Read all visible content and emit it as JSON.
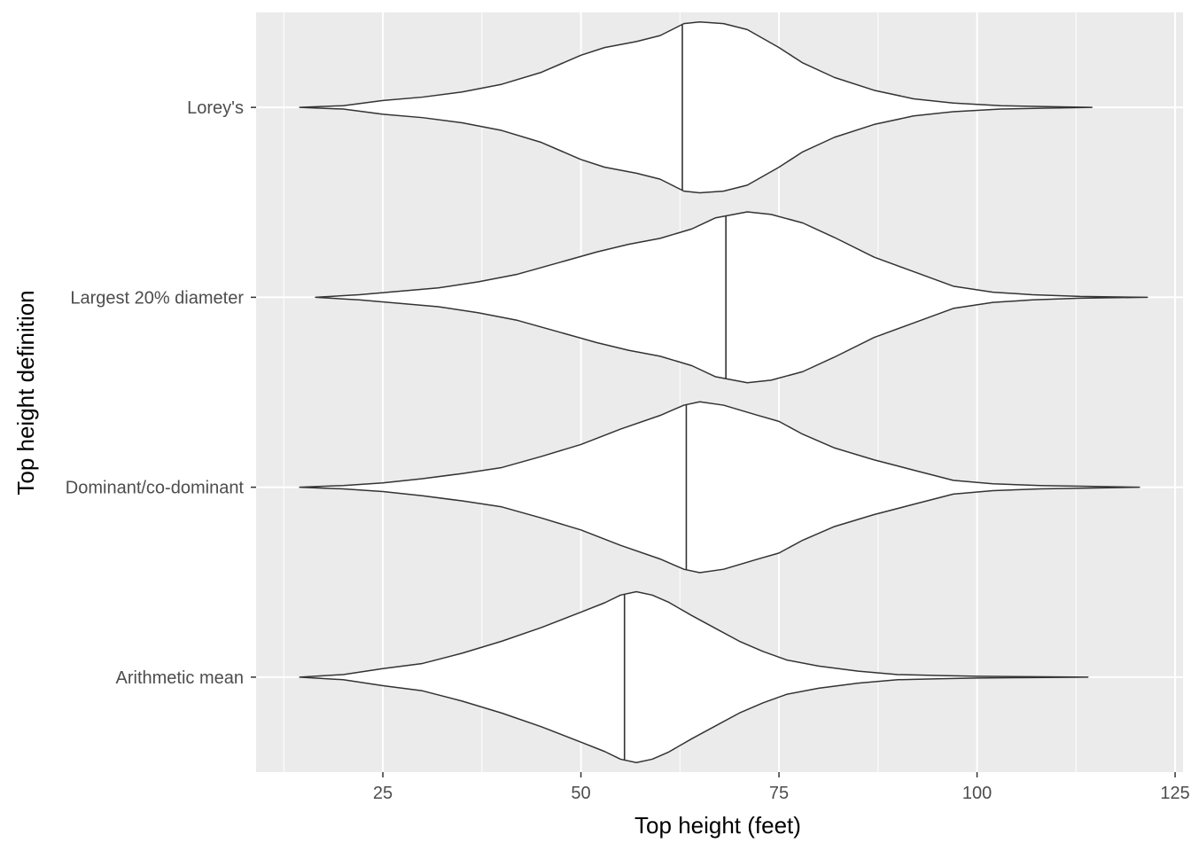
{
  "chart_data": {
    "type": "violin",
    "orientation": "horizontal",
    "xlabel": "Top height (feet)",
    "ylabel": "Top height definition",
    "xlim": [
      9,
      126
    ],
    "x_ticks": [
      25,
      50,
      75,
      100,
      125
    ],
    "x_minor_ticks": [
      12.5,
      37.5,
      62.5,
      87.5,
      112.5
    ],
    "categories": [
      "Lorey's",
      "Largest 20% diameter",
      "Dominant/co-dominant",
      "Arithmetic mean"
    ],
    "grid": true,
    "colors": {
      "panel": "#ebebeb",
      "grid": "#ffffff",
      "violin_fill": "#ffffff",
      "violin_stroke": "#333333"
    },
    "series": [
      {
        "category": "Lorey's",
        "min": 14.5,
        "max": 114.5,
        "median": 62.8,
        "density": [
          [
            14.5,
            0.0
          ],
          [
            20,
            0.02
          ],
          [
            25,
            0.08
          ],
          [
            30,
            0.12
          ],
          [
            35,
            0.18
          ],
          [
            40,
            0.27
          ],
          [
            45,
            0.41
          ],
          [
            50,
            0.61
          ],
          [
            53,
            0.7
          ],
          [
            57,
            0.77
          ],
          [
            60,
            0.84
          ],
          [
            63,
            0.98
          ],
          [
            65,
            1.0
          ],
          [
            68,
            0.98
          ],
          [
            71,
            0.91
          ],
          [
            75,
            0.7
          ],
          [
            78,
            0.52
          ],
          [
            82,
            0.35
          ],
          [
            87,
            0.2
          ],
          [
            92,
            0.1
          ],
          [
            97,
            0.05
          ],
          [
            103,
            0.02
          ],
          [
            108,
            0.01
          ],
          [
            114.5,
            0.0
          ]
        ]
      },
      {
        "category": "Largest 20% diameter",
        "min": 16.5,
        "max": 121.5,
        "median": 68.3,
        "density": [
          [
            16.5,
            0.0
          ],
          [
            22,
            0.03
          ],
          [
            27,
            0.07
          ],
          [
            32,
            0.11
          ],
          [
            37,
            0.18
          ],
          [
            42,
            0.27
          ],
          [
            47,
            0.4
          ],
          [
            52,
            0.53
          ],
          [
            56,
            0.62
          ],
          [
            60,
            0.69
          ],
          [
            64,
            0.8
          ],
          [
            67,
            0.93
          ],
          [
            71,
            1.0
          ],
          [
            74,
            0.97
          ],
          [
            78,
            0.87
          ],
          [
            82,
            0.7
          ],
          [
            87,
            0.47
          ],
          [
            92,
            0.3
          ],
          [
            97,
            0.13
          ],
          [
            102,
            0.06
          ],
          [
            107,
            0.03
          ],
          [
            113,
            0.01
          ],
          [
            121.5,
            0.0
          ]
        ]
      },
      {
        "category": "Dominant/co-dominant",
        "min": 14.5,
        "max": 120.5,
        "median": 63.3,
        "density": [
          [
            14.5,
            0.0
          ],
          [
            20,
            0.02
          ],
          [
            25,
            0.05
          ],
          [
            30,
            0.1
          ],
          [
            35,
            0.16
          ],
          [
            40,
            0.23
          ],
          [
            45,
            0.36
          ],
          [
            50,
            0.5
          ],
          [
            55,
            0.68
          ],
          [
            60,
            0.84
          ],
          [
            63,
            0.96
          ],
          [
            65,
            1.0
          ],
          [
            68,
            0.96
          ],
          [
            72,
            0.85
          ],
          [
            75,
            0.77
          ],
          [
            78,
            0.62
          ],
          [
            82,
            0.46
          ],
          [
            87,
            0.32
          ],
          [
            92,
            0.2
          ],
          [
            97,
            0.08
          ],
          [
            102,
            0.04
          ],
          [
            108,
            0.02
          ],
          [
            114,
            0.01
          ],
          [
            120.5,
            0.0
          ]
        ]
      },
      {
        "category": "Arithmetic mean",
        "min": 14.5,
        "max": 114.0,
        "median": 55.5,
        "density": [
          [
            14.5,
            0.0
          ],
          [
            20,
            0.03
          ],
          [
            25,
            0.1
          ],
          [
            30,
            0.16
          ],
          [
            35,
            0.28
          ],
          [
            40,
            0.42
          ],
          [
            45,
            0.58
          ],
          [
            50,
            0.76
          ],
          [
            53,
            0.87
          ],
          [
            55,
            0.96
          ],
          [
            57,
            1.0
          ],
          [
            59,
            0.96
          ],
          [
            61,
            0.88
          ],
          [
            64,
            0.72
          ],
          [
            67,
            0.57
          ],
          [
            70,
            0.42
          ],
          [
            73,
            0.3
          ],
          [
            76,
            0.2
          ],
          [
            80,
            0.13
          ],
          [
            85,
            0.07
          ],
          [
            90,
            0.03
          ],
          [
            95,
            0.02
          ],
          [
            100,
            0.01
          ],
          [
            107,
            0.005
          ],
          [
            114,
            0.0
          ]
        ]
      }
    ]
  }
}
